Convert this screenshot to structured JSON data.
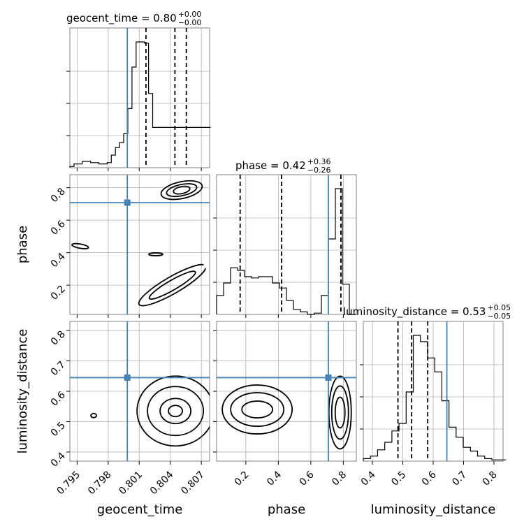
{
  "chart_data": {
    "type": "corner",
    "parameters": [
      "geocent_time",
      "phase",
      "luminosity_distance"
    ],
    "axis_labels": {
      "x": [
        "geocent_time",
        "phase",
        "luminosity_distance"
      ],
      "y_row2": "phase",
      "y_row3": "luminosity_distance"
    },
    "titles": [
      {
        "param": "geocent_time",
        "median": "0.80",
        "plus": "+0.00",
        "minus": "−0.00",
        "text": "geocent_time = 0.80"
      },
      {
        "param": "phase",
        "median": "0.42",
        "plus": "+0.36",
        "minus": "−0.26",
        "text": "phase = 0.42"
      },
      {
        "param": "luminosity_distance",
        "median": "0.53",
        "plus": "+0.05",
        "minus": "−0.05",
        "text": "luminosity_distance = 0.53"
      }
    ],
    "ranges": {
      "geocent_time": [
        0.7943,
        0.8078
      ],
      "phase": [
        0.02,
        0.88
      ],
      "luminosity_distance": [
        0.37,
        0.83
      ]
    },
    "ticks": {
      "geocent_time": [
        0.795,
        0.798,
        0.801,
        0.804,
        0.807
      ],
      "phase": [
        0.2,
        0.4,
        0.6,
        0.8
      ],
      "luminosity_distance": [
        0.4,
        0.5,
        0.6,
        0.7,
        0.8
      ]
    },
    "tick_labels": {
      "geocent_time": [
        "0.795",
        "0.798",
        "0.801",
        "0.804",
        "0.807"
      ],
      "phase": [
        "0.2",
        "0.4",
        "0.6",
        "0.8"
      ],
      "luminosity_distance": [
        "0.4",
        "0.5",
        "0.6",
        "0.7",
        "0.8"
      ]
    },
    "truths": {
      "geocent_time": 0.79985,
      "phase": 0.708,
      "luminosity_distance": 0.645
    },
    "quantiles": {
      "geocent_time": [
        0.80165,
        0.80445,
        0.80555
      ],
      "phase": [
        0.165,
        0.42,
        0.785
      ],
      "luminosity_distance": [
        0.484,
        0.529,
        0.582
      ]
    },
    "histograms": {
      "geocent_time": {
        "edges_start": 0.7943,
        "bin_width": 0.0004,
        "counts": [
          1,
          3,
          3,
          5,
          5,
          4,
          4,
          3,
          3,
          4,
          10,
          16,
          20,
          27,
          47,
          80,
          100,
          100,
          99,
          59,
          32,
          32,
          32,
          32,
          32,
          32,
          32,
          32,
          32,
          32,
          32,
          32,
          32,
          32
        ]
      },
      "phase": {
        "edges_start": 0.02,
        "bin_width": 0.043,
        "counts": [
          15,
          25,
          37,
          35,
          30,
          29,
          30,
          30,
          25,
          21,
          11,
          4,
          2,
          0,
          1,
          15,
          60,
          100,
          24,
          0
        ]
      },
      "luminosity_distance": {
        "edges_start": 0.37,
        "bin_width": 0.0235,
        "counts": [
          2,
          4,
          9,
          15,
          24,
          30,
          55,
          100,
          95,
          82,
          71,
          48,
          27,
          19,
          11,
          8,
          4,
          2,
          1,
          1
        ]
      }
    },
    "density_modes": [
      {
        "x": "geocent_time",
        "y": "phase",
        "modes": [
          [
            0.8049,
            0.795
          ],
          [
            0.8056,
            0.79
          ],
          [
            0.8041,
            0.765
          ]
        ]
      },
      {
        "x": "geocent_time",
        "y": "luminosity_distance",
        "modes": [
          [
            0.8055,
            0.525
          ],
          [
            0.8045,
            0.535
          ]
        ]
      },
      {
        "x": "phase",
        "y": "luminosity_distance",
        "modes": [
          [
            0.78,
            0.525
          ],
          [
            0.27,
            0.54
          ]
        ]
      }
    ],
    "grid": true,
    "legend": "none"
  },
  "colors": {
    "truth": "#4682b4",
    "hist": "#000000",
    "scatter": "#9a9a9a",
    "grid": "#b0b0b0"
  }
}
